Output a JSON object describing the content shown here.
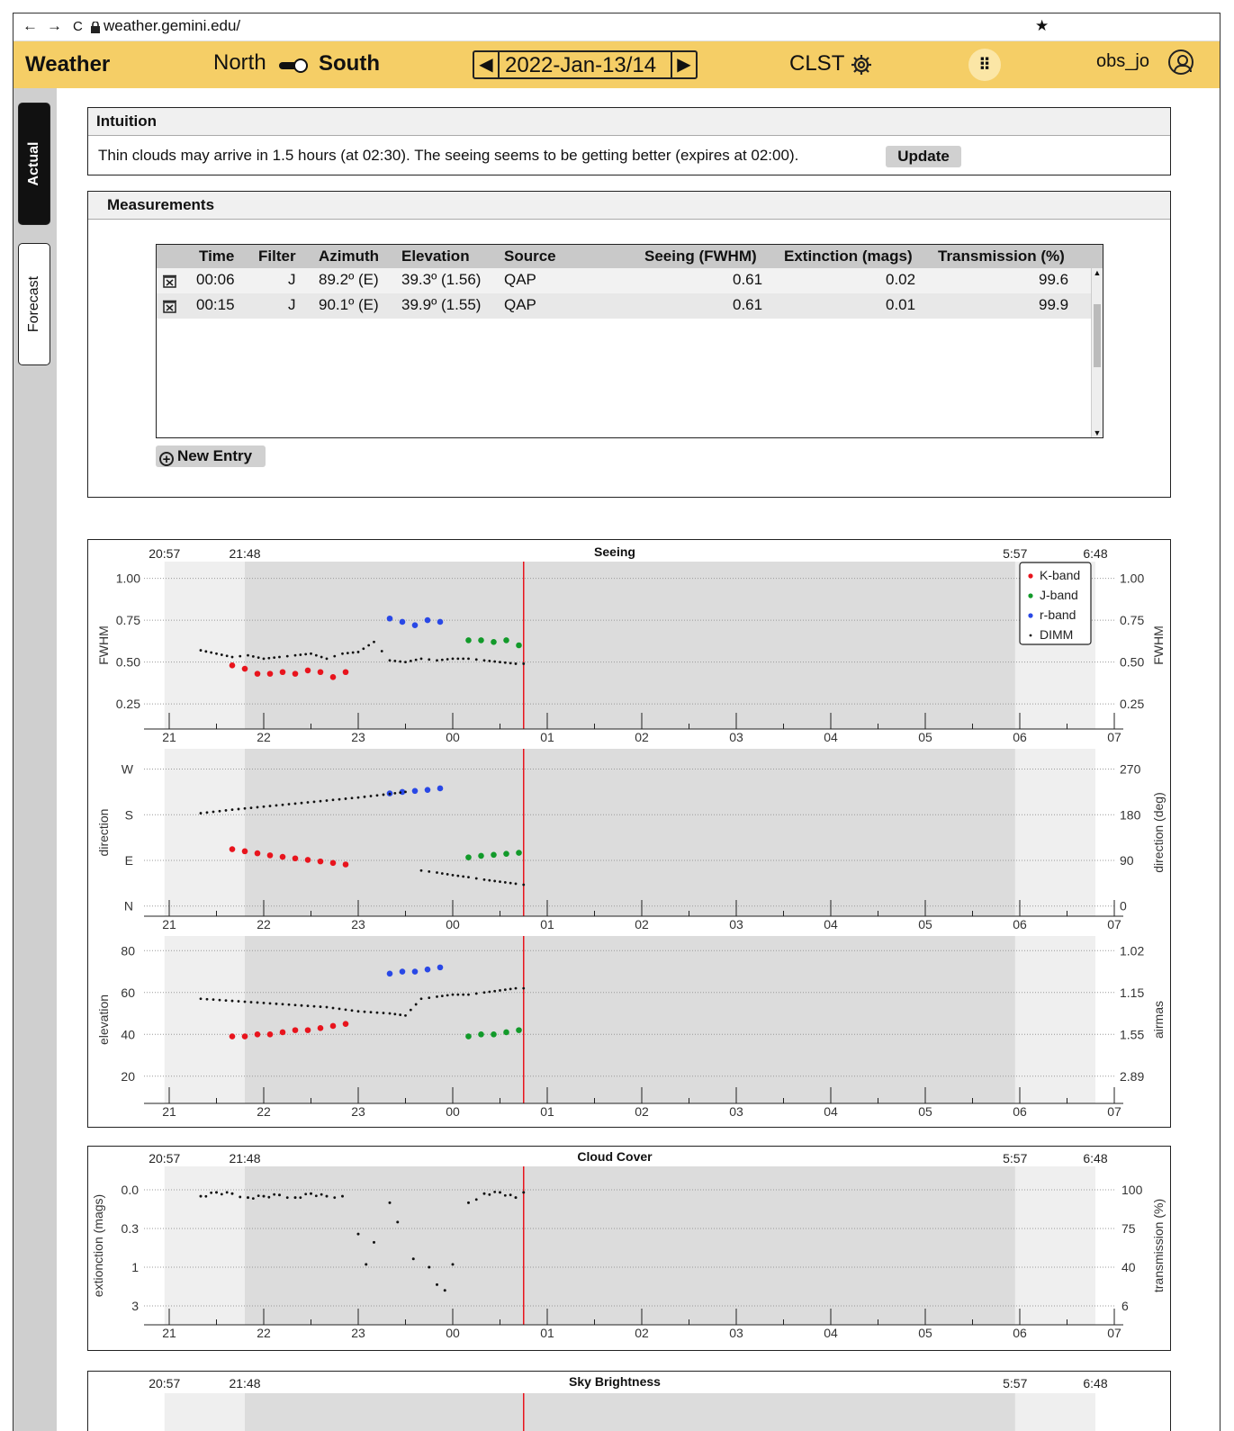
{
  "browser": {
    "back": "←",
    "forward": "→",
    "reload": "C",
    "url": "weather.gemini.edu/",
    "star": "★"
  },
  "header": {
    "title": "Weather",
    "site_north": "North",
    "site_south": "South",
    "date": "2022-Jan-13/14",
    "timezone": "CLST",
    "user": "obs_jo"
  },
  "sidebar": {
    "tabs": [
      {
        "label": "Actual",
        "active": true
      },
      {
        "label": "Forecast",
        "active": false
      }
    ]
  },
  "intuition": {
    "title": "Intuition",
    "text": "Thin clouds may arrive in 1.5 hours (at 02:30).  The seeing seems to be getting better (expires at 02:00).",
    "update_label": "Update"
  },
  "measurements": {
    "title": "Measurements",
    "columns": [
      "Time",
      "Filter",
      "Azimuth",
      "Elevation",
      "Source",
      "Seeing (FWHM)",
      "Extinction (mags)",
      "Transmission (%)"
    ],
    "rows": [
      {
        "time": "00:06",
        "filter": "J",
        "azimuth": "89.2º (E)",
        "elevation": "39.3º (1.56)",
        "source": "QAP",
        "seeing": "0.61",
        "extinction": "0.02",
        "transmission": "99.6"
      },
      {
        "time": "00:15",
        "filter": "J",
        "azimuth": "90.1º (E)",
        "elevation": "39.9º (1.55)",
        "source": "QAP",
        "seeing": "0.61",
        "extinction": "0.01",
        "transmission": "99.9"
      }
    ],
    "new_entry_label": "New Entry"
  },
  "twilight_labels": [
    "20:57",
    "21:48",
    "5:57",
    "6:48"
  ],
  "hour_ticks": [
    "21",
    "22",
    "23",
    "00",
    "01",
    "02",
    "03",
    "04",
    "05",
    "06",
    "07"
  ],
  "colors": {
    "kband": "#e8141d",
    "jband": "#129a2a",
    "rband": "#2948e6",
    "dimm": "#111111",
    "now": "#e8141d"
  },
  "chart_data": [
    {
      "type": "scatter",
      "title": "Seeing",
      "panel": "fwhm",
      "ylabel": "FWHM",
      "ylabel_right": "FWHM",
      "yticks": [
        "0.25",
        "0.50",
        "0.75",
        "1.00"
      ],
      "yticks_right": [
        "0.25",
        "0.50",
        "0.75",
        "1.00"
      ],
      "ylim": [
        0.1,
        1.1
      ],
      "legend": [
        "K-band",
        "J-band",
        "r-band",
        "DIMM"
      ],
      "legend_position": "top-right",
      "now": "00:45",
      "series": [
        {
          "name": "K-band",
          "x": [
            "21:40",
            "21:48",
            "21:56",
            "22:04",
            "22:12",
            "22:20",
            "22:28",
            "22:36",
            "22:44",
            "22:52"
          ],
          "values": [
            0.48,
            0.46,
            0.43,
            0.43,
            0.44,
            0.43,
            0.45,
            0.44,
            0.41,
            0.44
          ]
        },
        {
          "name": "J-band",
          "x": [
            "00:10",
            "00:18",
            "00:26",
            "00:34",
            "00:42"
          ],
          "values": [
            0.63,
            0.63,
            0.62,
            0.63,
            0.6
          ]
        },
        {
          "name": "r-band",
          "x": [
            "23:20",
            "23:28",
            "23:36",
            "23:44",
            "23:52"
          ],
          "values": [
            0.76,
            0.74,
            0.72,
            0.75,
            0.74
          ]
        },
        {
          "name": "DIMM",
          "x": [
            "21:20",
            "21:30",
            "21:40",
            "21:50",
            "22:00",
            "22:10",
            "22:20",
            "22:30",
            "22:40",
            "22:50",
            "23:00",
            "23:10",
            "23:20",
            "23:30",
            "23:40",
            "23:50",
            "00:00",
            "00:10",
            "00:20",
            "00:30",
            "00:40",
            "00:45"
          ],
          "values": [
            0.57,
            0.55,
            0.53,
            0.54,
            0.52,
            0.53,
            0.54,
            0.55,
            0.52,
            0.55,
            0.56,
            0.62,
            0.51,
            0.5,
            0.52,
            0.51,
            0.52,
            0.52,
            0.51,
            0.5,
            0.49,
            0.49
          ]
        }
      ]
    },
    {
      "type": "scatter",
      "panel": "direction",
      "ylabel": "direction",
      "ylabel_right": "direction (deg)",
      "yticks": [
        "N",
        "E",
        "S",
        "W"
      ],
      "yticks_right": [
        "0",
        "90",
        "180",
        "270"
      ],
      "ylim": [
        -20,
        310
      ],
      "now": "00:45",
      "series": [
        {
          "name": "K-band",
          "x": [
            "21:40",
            "21:48",
            "21:56",
            "22:04",
            "22:12",
            "22:20",
            "22:28",
            "22:36",
            "22:44",
            "22:52"
          ],
          "values": [
            112,
            108,
            104,
            100,
            97,
            94,
            91,
            88,
            85,
            82
          ]
        },
        {
          "name": "J-band",
          "x": [
            "00:10",
            "00:18",
            "00:26",
            "00:34",
            "00:42"
          ],
          "values": [
            96,
            99,
            101,
            103,
            105
          ]
        },
        {
          "name": "r-band",
          "x": [
            "23:20",
            "23:28",
            "23:36",
            "23:44",
            "23:52"
          ],
          "values": [
            222,
            225,
            227,
            229,
            232
          ]
        },
        {
          "name": "DIMM",
          "x": [
            "21:20",
            "21:40",
            "22:00",
            "22:20",
            "22:40",
            "23:00",
            "23:20",
            "23:30",
            "23:40",
            "23:50",
            "00:00",
            "00:10",
            "00:20",
            "00:30",
            "00:40",
            "00:45"
          ],
          "values": [
            183,
            190,
            196,
            202,
            208,
            214,
            221,
            225,
            70,
            66,
            61,
            57,
            52,
            48,
            44,
            42
          ]
        }
      ]
    },
    {
      "type": "scatter",
      "panel": "elevation",
      "ylabel": "elevation",
      "ylabel_right": "airmas",
      "yticks": [
        "20",
        "40",
        "60",
        "80"
      ],
      "yticks_right": [
        "2.89",
        "1.55",
        "1.15",
        "1.02"
      ],
      "ylim": [
        7,
        87
      ],
      "now": "00:45",
      "series": [
        {
          "name": "K-band",
          "x": [
            "21:40",
            "21:48",
            "21:56",
            "22:04",
            "22:12",
            "22:20",
            "22:28",
            "22:36",
            "22:44",
            "22:52"
          ],
          "values": [
            39,
            39,
            40,
            40,
            41,
            42,
            42,
            43,
            44,
            45
          ]
        },
        {
          "name": "J-band",
          "x": [
            "00:10",
            "00:18",
            "00:26",
            "00:34",
            "00:42"
          ],
          "values": [
            39,
            40,
            40,
            41,
            42
          ]
        },
        {
          "name": "r-band",
          "x": [
            "23:20",
            "23:28",
            "23:36",
            "23:44",
            "23:52"
          ],
          "values": [
            69,
            70,
            70,
            71,
            72
          ]
        },
        {
          "name": "DIMM",
          "x": [
            "21:20",
            "21:40",
            "22:00",
            "22:20",
            "22:40",
            "23:00",
            "23:20",
            "23:30",
            "23:40",
            "23:50",
            "00:00",
            "00:10",
            "00:20",
            "00:30",
            "00:40",
            "00:45"
          ],
          "values": [
            57,
            56,
            55,
            54,
            53,
            51,
            50,
            49,
            57,
            58,
            59,
            59,
            60,
            61,
            62,
            62
          ]
        }
      ]
    },
    {
      "type": "scatter",
      "title": "Cloud Cover",
      "panel": "extinction",
      "ylabel": "extionction (mags)",
      "ylabel_right": "transmission (%)",
      "yticks": [
        "0.0",
        "0.3",
        "1",
        "3"
      ],
      "yticks_right": [
        "100",
        "75",
        "40",
        "6"
      ],
      "ylim": [
        -0.3,
        3.4
      ],
      "now": "00:45",
      "series": [
        {
          "name": "DIMM",
          "x": [
            "21:20",
            "21:30",
            "21:40",
            "21:50",
            "22:00",
            "22:10",
            "22:20",
            "22:30",
            "22:40",
            "22:50",
            "23:00",
            "23:05",
            "23:10",
            "23:20",
            "23:25",
            "23:35",
            "23:45",
            "23:50",
            "23:55",
            "00:00",
            "00:10",
            "00:20",
            "00:30",
            "00:40",
            "00:45"
          ],
          "values": [
            0.05,
            0.02,
            0.03,
            0.06,
            0.05,
            0.04,
            0.06,
            0.03,
            0.05,
            0.05,
            0.4,
            0.95,
            0.55,
            0.1,
            0.25,
            0.85,
            1.0,
            1.9,
            2.2,
            0.95,
            0.1,
            0.03,
            0.02,
            0.06,
            0.02
          ]
        }
      ]
    },
    {
      "type": "scatter",
      "title": "Sky Brightness",
      "panel": "sky"
    }
  ]
}
